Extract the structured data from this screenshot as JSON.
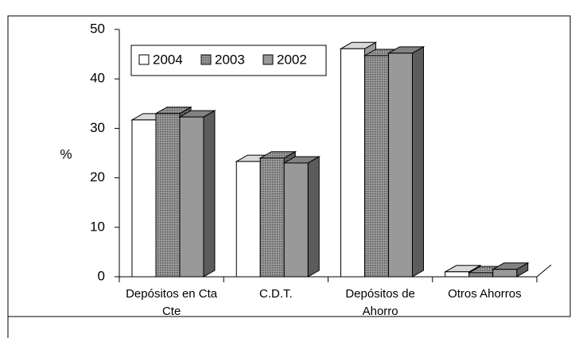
{
  "chart_data": {
    "type": "bar3d",
    "y_label": "%",
    "categories": [
      "Depósitos en Cta Cte",
      "C.D.T.",
      "Depósitos de Ahorro",
      "Otros Ahorros"
    ],
    "series": [
      {
        "name": "2004",
        "color": "#ffffff",
        "values": [
          31.7,
          23.3,
          46.1,
          1.0
        ]
      },
      {
        "name": "2003",
        "color": "#808080",
        "fill_pattern": "dots",
        "values": [
          33.0,
          24.0,
          44.7,
          0.8
        ]
      },
      {
        "name": "2002",
        "color": "#999999",
        "values": [
          32.3,
          23.0,
          45.2,
          1.5
        ]
      }
    ],
    "ylim": [
      0,
      50
    ],
    "yticks": [
      0,
      10,
      20,
      30,
      40,
      50
    ],
    "legend": "top-left"
  }
}
